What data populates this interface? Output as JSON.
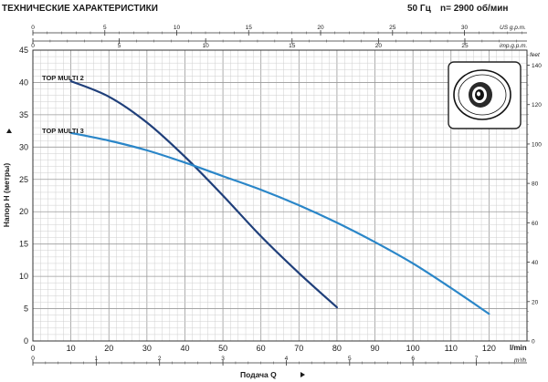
{
  "header": {
    "title": "ТЕХНИЧЕСКИЕ ХАРАКТЕРИСТИКИ",
    "frequency": "50 Гц",
    "speed": "n= 2900 об/мин"
  },
  "colors": {
    "multi2": "#1f3f7a",
    "multi3": "#2a86c8",
    "grid": "#cfcfcf",
    "axis": "#333333"
  },
  "icon": "pump-impeller-icon",
  "chart_data": {
    "type": "line",
    "title": "",
    "xlabel": "Подача Q",
    "ylabel": "Напор H (метры)",
    "x_unit": "l/min",
    "xlim": [
      0,
      130
    ],
    "ylim": [
      0,
      45
    ],
    "x_ticks": [
      0,
      10,
      20,
      30,
      40,
      50,
      60,
      70,
      80,
      90,
      100,
      110,
      120
    ],
    "y_ticks": [
      0,
      5,
      10,
      15,
      20,
      25,
      30,
      35,
      40,
      45
    ],
    "grid": true,
    "secondary_axes": {
      "top_us": {
        "unit": "US g.p.m.",
        "ticks": [
          "0",
          "5",
          "10",
          "15",
          "20",
          "25",
          "30"
        ],
        "step_lpm": 3.785
      },
      "top_imp": {
        "unit": "imp.g.p.m.",
        "ticks": [
          "0",
          "5",
          "10",
          "15",
          "20",
          "25"
        ],
        "step_lpm": 4.546
      },
      "bottom_m3h": {
        "unit": "m³/h",
        "ticks": [
          "0",
          "1",
          "2",
          "3",
          "4",
          "5",
          "6",
          "7"
        ],
        "step_lpm": 16.667
      },
      "right_feet": {
        "unit": "feet",
        "ticks": [
          "0",
          "20",
          "40",
          "60",
          "80",
          "100",
          "120",
          "140"
        ],
        "step_m": 0.3048
      }
    },
    "series": [
      {
        "name": "TOP MULTI 2",
        "x": [
          10,
          20,
          30,
          40,
          50,
          60,
          70,
          80
        ],
        "y": [
          40.2,
          37.8,
          33.8,
          28.5,
          22.5,
          16.2,
          10.5,
          5.2
        ]
      },
      {
        "name": "TOP MULTI 3",
        "x": [
          10,
          20,
          30,
          40,
          50,
          60,
          70,
          80,
          90,
          100,
          110,
          120
        ],
        "y": [
          32.2,
          31.0,
          29.5,
          27.6,
          25.5,
          23.4,
          21.0,
          18.3,
          15.3,
          12.0,
          8.2,
          4.2
        ]
      }
    ]
  }
}
